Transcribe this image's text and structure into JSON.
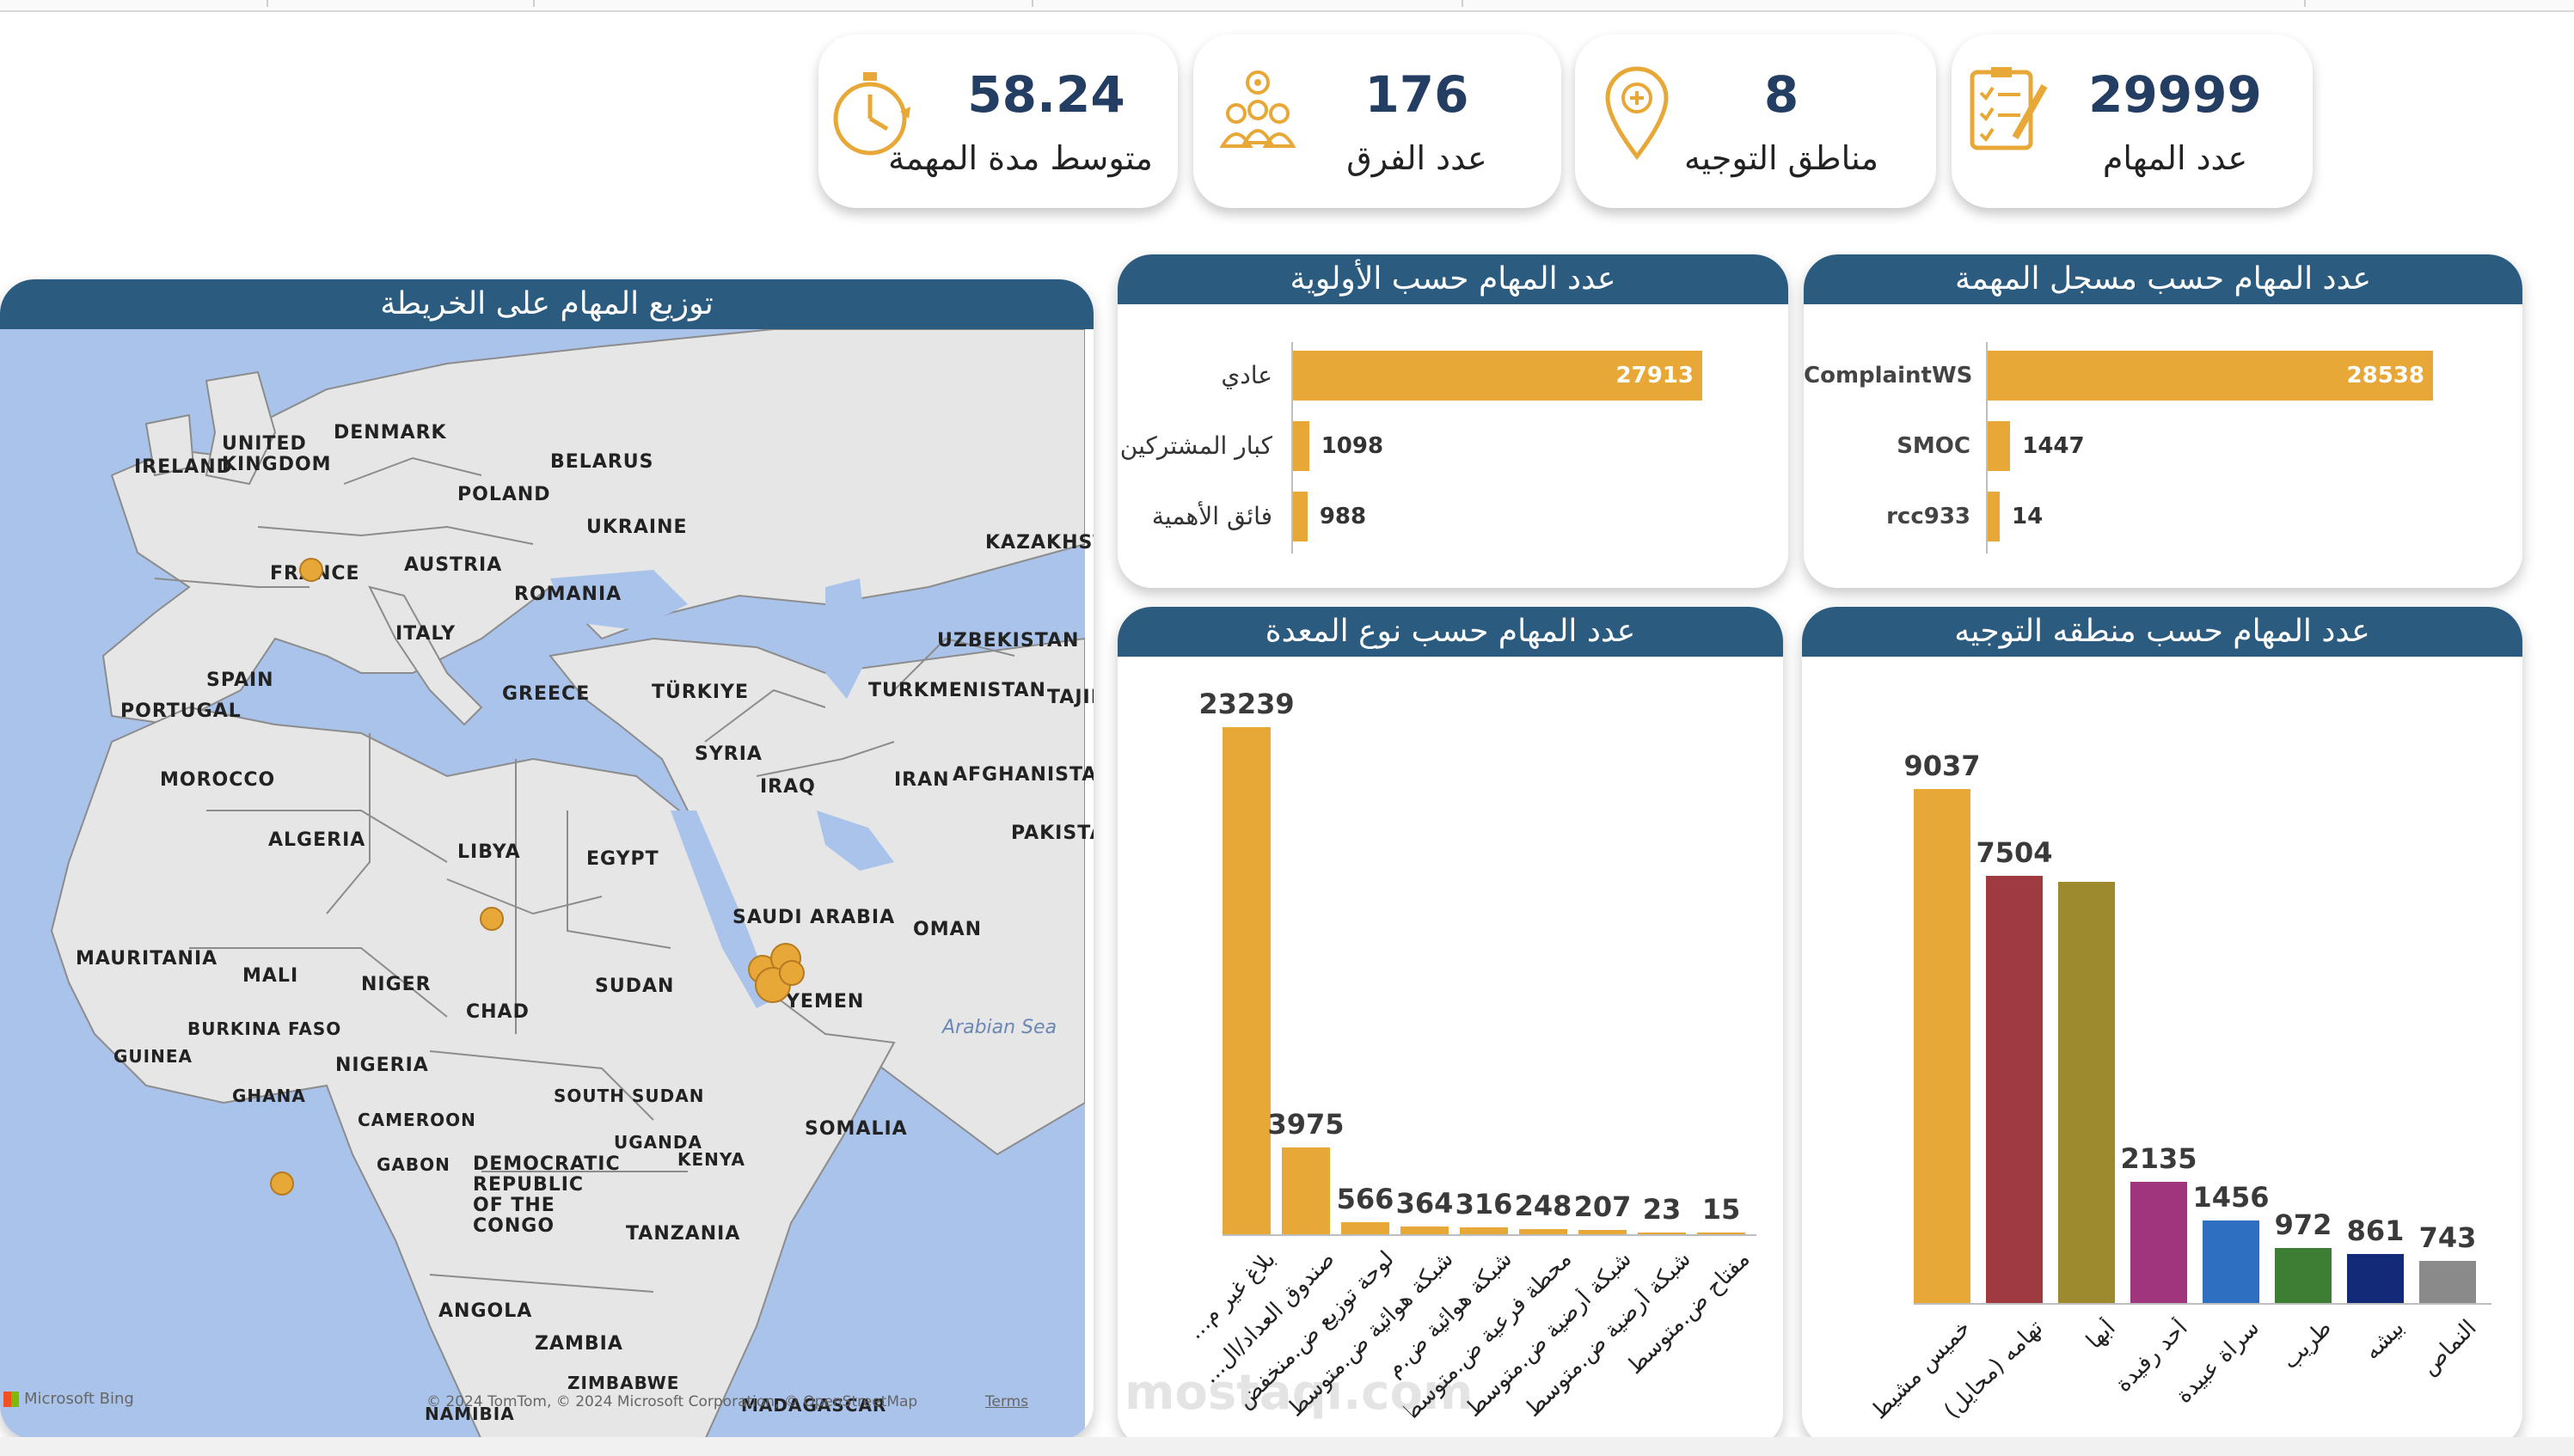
{
  "kpis": [
    {
      "value": "58.24",
      "label": "متوسط مدة المهمة",
      "icon": "stopwatch-icon"
    },
    {
      "value": "176",
      "label": "عدد الفرق",
      "icon": "team-gear-icon"
    },
    {
      "value": "8",
      "label": "مناطق التوجيه",
      "icon": "location-pin-icon"
    },
    {
      "value": "29999",
      "label": "عدد المهام",
      "icon": "checklist-icon"
    }
  ],
  "map": {
    "title": "توزيع المهام على الخريطة",
    "labels": [
      "UNITED KINGDOM",
      "DENMARK",
      "IRELAND",
      "BELARUS",
      "POLAND",
      "UKRAINE",
      "KAZAKHST",
      "FRANCE",
      "AUSTRIA",
      "ROMANIA",
      "ITALY",
      "UZBEKISTAN",
      "SPAIN",
      "PORTUGAL",
      "GREECE",
      "TÜRKIYE",
      "TURKMENISTAN",
      "TAJII",
      "MOROCCO",
      "SYRIA",
      "IRAQ",
      "IRAN",
      "AFGHANISTAN",
      "ALGERIA",
      "LIBYA",
      "EGYPT",
      "PAKISTA",
      "SAUDI ARABIA",
      "OMAN",
      "MAURITANIA",
      "MALI",
      "NIGER",
      "CHAD",
      "SUDAN",
      "YEMEN",
      "BURKINA FASO",
      "GUINEA",
      "NIGERIA",
      "GHANA",
      "SOUTH SUDAN",
      "CAMEROON",
      "SOMALIA",
      "UGANDA",
      "GABON",
      "KENYA",
      "DEMOCRATIC REPUBLIC OF THE CONGO",
      "TANZANIA",
      "ANGOLA",
      "ZAMBIA",
      "NAMIBIA",
      "MADAGASCAR",
      "ZIMBABWE"
    ],
    "sea_label": "Arabian Sea",
    "provider": "Microsoft Bing",
    "copyright": "© 2024 TomTom, © 2024 Microsoft Corporation, © OpenStreetMap",
    "terms": "Terms"
  },
  "priority": {
    "title": "عدد المهام حسب الأولوية",
    "rows": [
      {
        "label": "عادي",
        "value": 27913
      },
      {
        "label": "كبار المشتركين",
        "value": 1098
      },
      {
        "label": "فائق الأهمية",
        "value": 988
      }
    ]
  },
  "registrar": {
    "title": "عدد المهام حسب مسجل المهمة",
    "rows": [
      {
        "label": "ComplaintWS",
        "value": 28538
      },
      {
        "label": "SMOC",
        "value": 1447
      },
      {
        "label": "rcc933",
        "value": 14
      }
    ]
  },
  "equipment": {
    "title": "عدد المهام حسب نوع المعدة",
    "categories": [
      "بلاغ غير م...",
      "صندوق العداد/ال...",
      "لوحة توزيع ض.منخفض",
      "شبكة هوائية ض.متوسط",
      "شبكة هوائية ض.م",
      "محطة فرعية ض.متوسط",
      "شبكة أرضية ض.متوسط",
      "شبكة أرضية ض.متوسط",
      "مفتاح ض.متوسط"
    ],
    "values": [
      23239,
      3975,
      566,
      364,
      316,
      248,
      207,
      23,
      15
    ]
  },
  "region": {
    "title": "عدد المهام حسب منطقه التوجيه",
    "categories": [
      "خميس مشيط",
      "تهامه (محايل)",
      "أبها",
      "أحد رفيدة",
      "سراة عبيدة",
      "طريب",
      "بيشه",
      "النماص"
    ],
    "values": [
      9037,
      7504,
      7400,
      2135,
      1456,
      972,
      861,
      743
    ],
    "labels_shown": [
      "9037",
      "7504",
      "",
      "2135",
      "1456",
      "972",
      "861",
      "743"
    ],
    "colors": [
      "#e8a838",
      "#9e3a40",
      "#9e8a2e",
      "#a0357e",
      "#2f6fc2",
      "#3e7e34",
      "#122a78",
      "#8a8a8a"
    ]
  },
  "watermark": "mostaqi.com"
}
